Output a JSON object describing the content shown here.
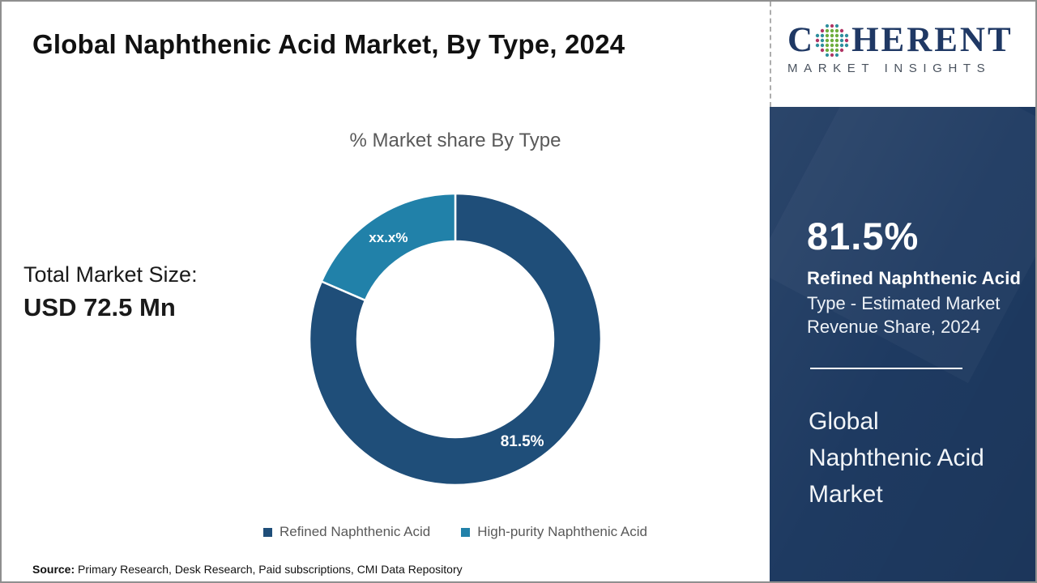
{
  "header": {
    "title": "Global Naphthenic Acid Market, By Type, 2024"
  },
  "logo": {
    "part1": "C",
    "part2": "HERENT",
    "subtitle": "MARKET INSIGHTS",
    "globe_icon": "coherent-globe-icon"
  },
  "total": {
    "label": "Total Market Size:",
    "value": "USD 72.5 Mn"
  },
  "source": {
    "label": "Source:",
    "text": "Primary Research, Desk Research, Paid subscriptions, CMI Data Repository"
  },
  "sidebar": {
    "stat_value": "81.5%",
    "stat_name": "Refined Naphthenic Acid",
    "stat_desc": "Type - Estimated Market Revenue Share, 2024",
    "market_name": "Global Naphthenic Acid Market"
  },
  "colors": {
    "sidebar_bg": "#1E3A61",
    "primary_slice": "#1F4E79",
    "secondary_slice": "#2181A9",
    "logo_navy": "#1F3864",
    "muted_text": "#595959"
  },
  "chart_data": {
    "type": "pie",
    "subtype": "donut",
    "title": "% Market share By Type",
    "start_angle_deg": 0,
    "legend_position": "bottom",
    "inner_radius_ratio": 0.67,
    "series": [
      {
        "name": "Refined Naphthenic Acid",
        "value": 81.5,
        "display": "81.5%",
        "color": "#1F4E79"
      },
      {
        "name": "High-purity Naphthenic Acid",
        "value": 18.5,
        "display": "xx.x%",
        "color": "#2181A9"
      }
    ]
  }
}
